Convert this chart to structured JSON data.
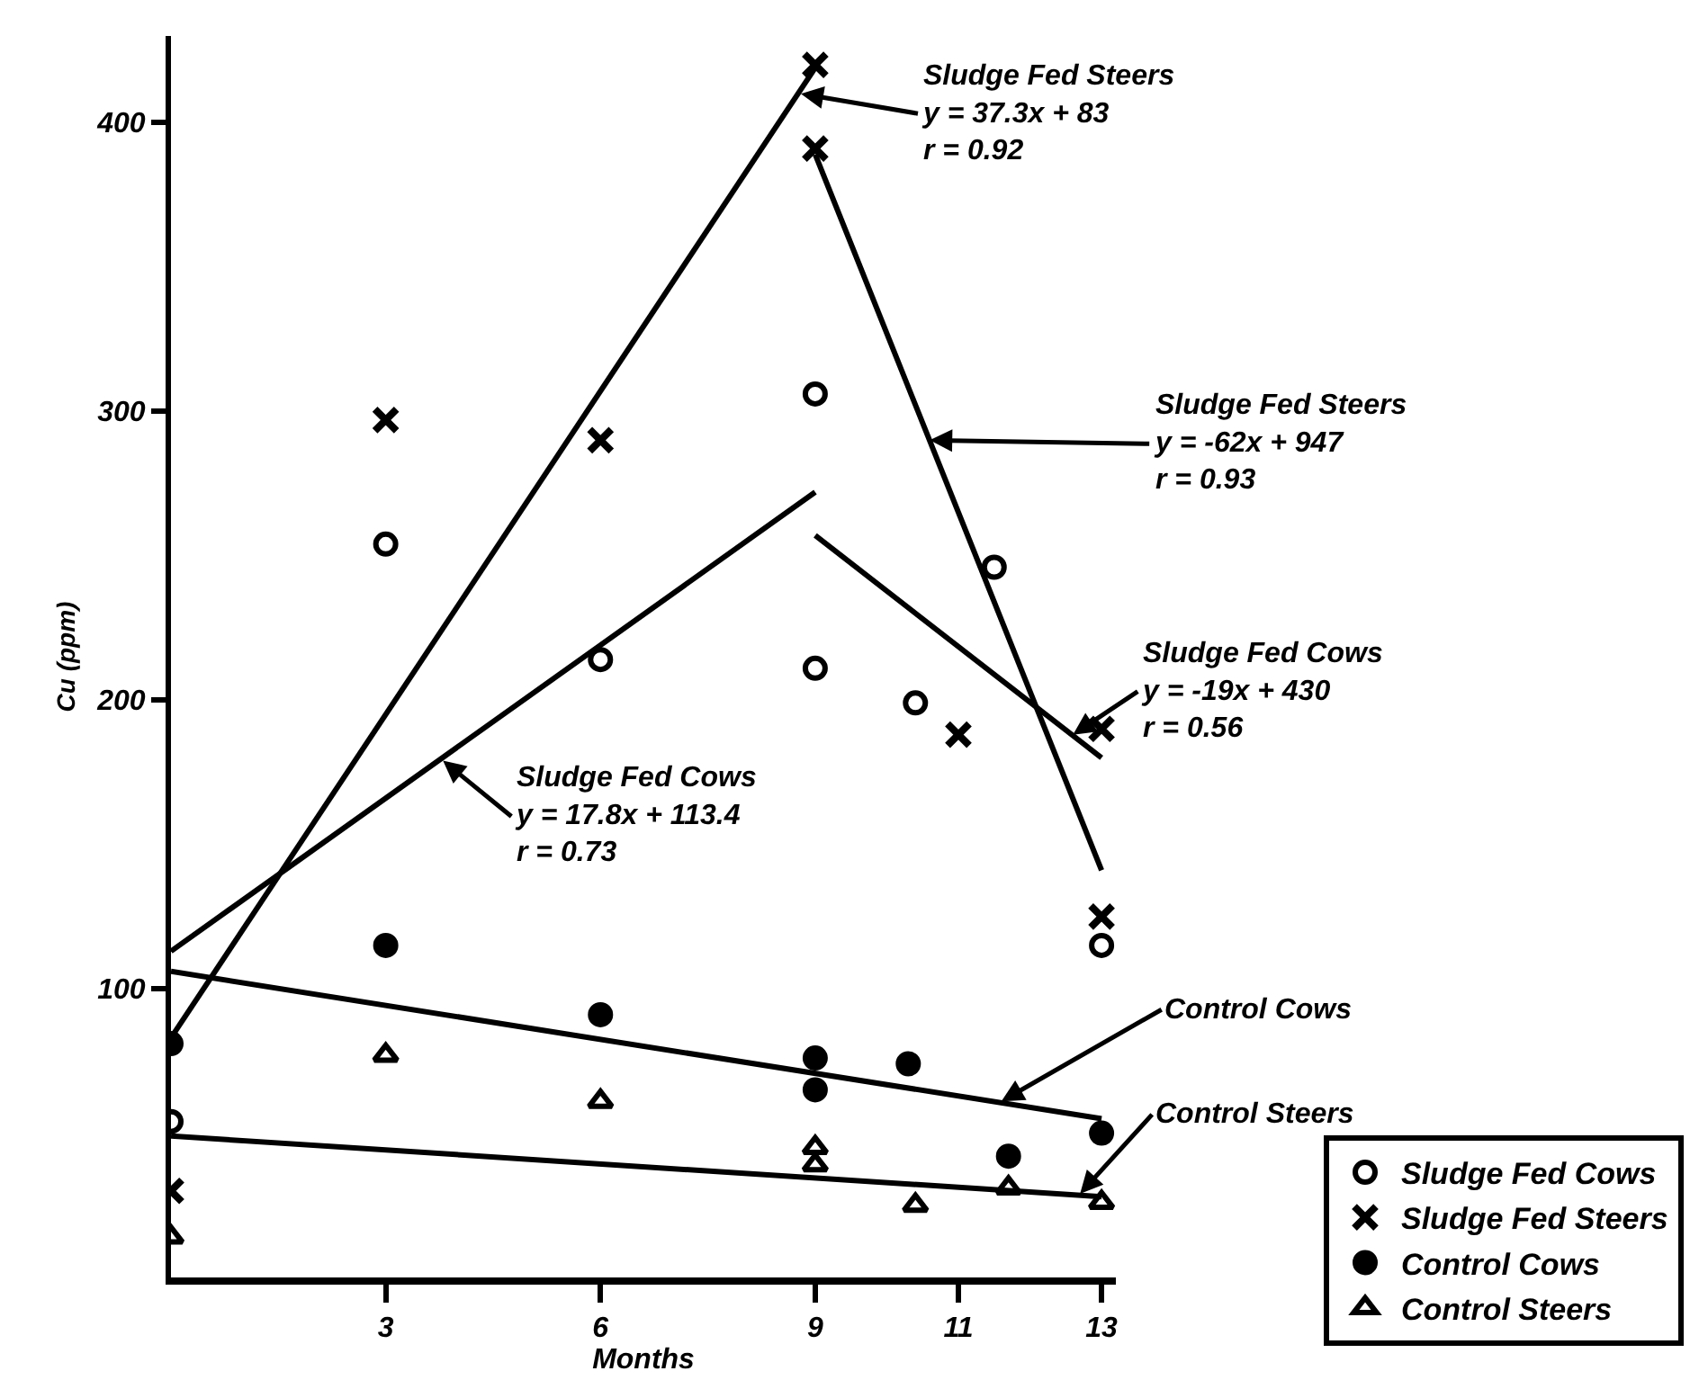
{
  "chart_data": {
    "type": "scatter",
    "xlabel": "Months",
    "ylabel": "Cu (ppm)",
    "xlim": [
      0,
      13.2
    ],
    "xticks": [
      3,
      6,
      9,
      11,
      13
    ],
    "ylim": [
      0,
      430
    ],
    "yticks": [
      100,
      200,
      300,
      400
    ],
    "legend": "bottom right",
    "series": [
      {
        "name": "Sludge Fed Cows",
        "marker": "circle",
        "color": "#ffffff",
        "x": [
          0,
          3,
          6,
          9,
          9,
          10.4,
          11.5,
          13
        ],
        "values": [
          54,
          254,
          214,
          306,
          211,
          199,
          246,
          115
        ]
      },
      {
        "name": "Sludge Fed Steers",
        "marker": "cross",
        "color": "#000000",
        "x": [
          0,
          3,
          6,
          9,
          9,
          11,
          13,
          13
        ],
        "values": [
          30,
          297,
          290,
          420,
          391,
          188,
          190,
          125
        ]
      },
      {
        "name": "Control Cows",
        "marker": "circle",
        "color": "#000000",
        "x": [
          0,
          3,
          6,
          9,
          9,
          10.3,
          11.7,
          13
        ],
        "values": [
          81,
          115,
          91,
          76,
          65,
          74,
          42,
          50
        ]
      },
      {
        "name": "Control Steers",
        "marker": "triangle",
        "color": "#ffffff",
        "x": [
          0,
          3,
          6,
          9,
          9,
          10.4,
          11.7,
          13
        ],
        "values": [
          14,
          77,
          61,
          45,
          39,
          25,
          31,
          26
        ]
      },
      {
        "type": "line",
        "color": "#000000",
        "x": [
          0,
          9
        ],
        "values": [
          83,
          419
        ]
      },
      {
        "type": "line",
        "color": "#000000",
        "x": [
          9,
          13
        ],
        "values": [
          389,
          141
        ]
      },
      {
        "type": "line",
        "color": "#000000",
        "x": [
          0,
          9
        ],
        "values": [
          113,
          272
        ]
      },
      {
        "type": "line",
        "color": "#000000",
        "x": [
          9,
          13
        ],
        "values": [
          257,
          180
        ]
      },
      {
        "type": "line",
        "color": "#000000",
        "x": [
          0,
          13
        ],
        "values": [
          106,
          55
        ]
      },
      {
        "type": "line",
        "color": "#000000",
        "x": [
          0,
          13
        ],
        "values": [
          49,
          28
        ]
      }
    ],
    "annotations": [
      {
        "text": "Sludge Fed Steers\ny = 37.3x + 83\nr = 0.92",
        "x": 8.8,
        "y": 410
      },
      {
        "text": "Sludge Fed Steers\ny = -62x + 947\nr = 0.93",
        "x": 10.6,
        "y": 290
      },
      {
        "text": "Sludge Fed Cows\ny = -19x + 430\nr = 0.56",
        "x": 12.6,
        "y": 188
      },
      {
        "text": "Sludge Fed Cows\ny = 17.8x + 113.4\nr = 0.73",
        "x": 3.8,
        "y": 179
      },
      {
        "text": "Control Cows",
        "x": 11.6,
        "y": 61
      },
      {
        "text": "Control Steers",
        "x": 12.7,
        "y": 29
      }
    ]
  }
}
